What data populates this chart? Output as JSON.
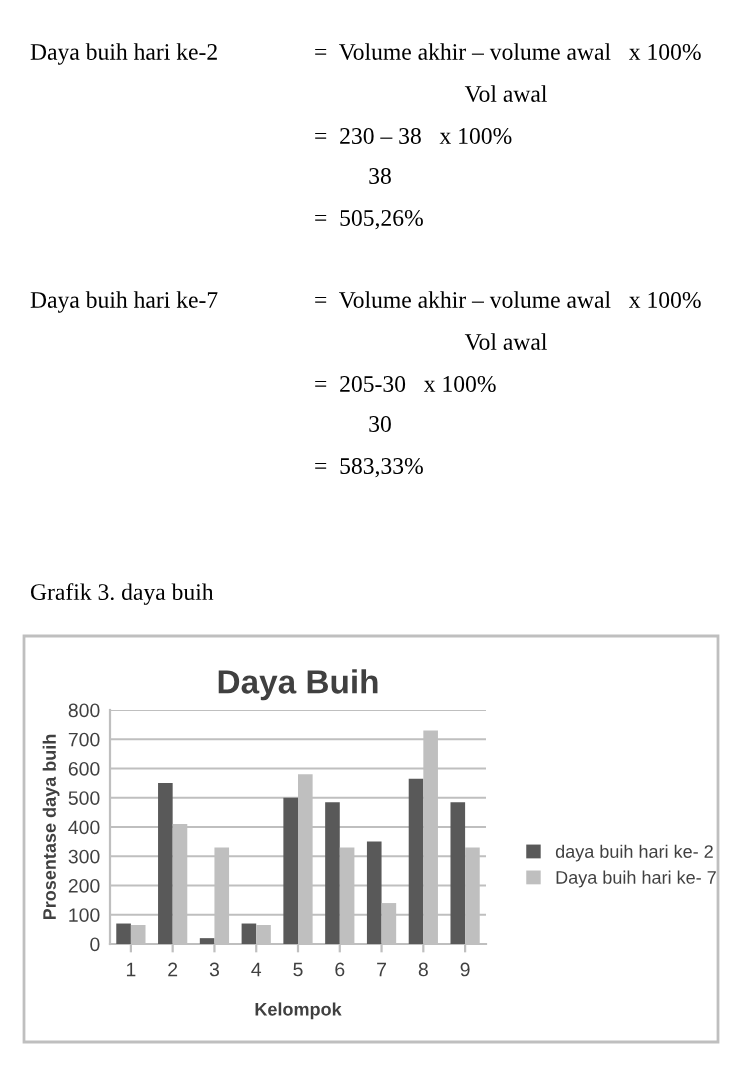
{
  "chart_data": {
    "type": "bar",
    "title": "Daya Buih",
    "xlabel": "Kelompok",
    "ylabel": "Prosentase daya buih",
    "categories": [
      "1",
      "2",
      "3",
      "4",
      "5",
      "6",
      "7",
      "8",
      "9"
    ],
    "series": [
      {
        "name": "daya buih hari ke- 2",
        "color": "#595959",
        "values": [
          70,
          550,
          20,
          70,
          500,
          485,
          350,
          565,
          485
        ]
      },
      {
        "name": "Daya buih hari ke- 7",
        "color": "#bfbfbf",
        "values": [
          65,
          410,
          330,
          65,
          580,
          330,
          140,
          730,
          330
        ]
      }
    ],
    "ylim": [
      0,
      800
    ],
    "yticks": [
      0,
      100,
      200,
      300,
      400,
      500,
      600,
      700,
      800
    ],
    "grid": "y",
    "legend": "right",
    "annotations": [
      "Daya buih hari ke-2",
      "=  Volume akhir – volume awal   x 100%",
      "Vol awal",
      "=  230 – 38   x 100%",
      "38",
      "=  505,26%",
      "Daya buih hari ke-7",
      "=  Volume akhir – volume awal   x 100%",
      "Vol awal",
      "=  205-30   x 100%",
      "30",
      "=  583,33%",
      "Grafik 3. daya buih"
    ]
  }
}
